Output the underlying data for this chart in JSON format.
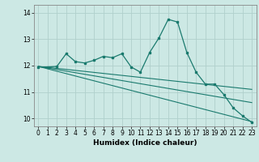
{
  "title": "",
  "xlabel": "Humidex (Indice chaleur)",
  "bg_color": "#cce8e4",
  "grid_color": "#b0d0cc",
  "line_color": "#1a7a6e",
  "xlim": [
    -0.5,
    23.5
  ],
  "ylim": [
    9.7,
    14.3
  ],
  "yticks": [
    10,
    11,
    12,
    13,
    14
  ],
  "xticks": [
    0,
    1,
    2,
    3,
    4,
    5,
    6,
    7,
    8,
    9,
    10,
    11,
    12,
    13,
    14,
    15,
    16,
    17,
    18,
    19,
    20,
    21,
    22,
    23
  ],
  "series1_x": [
    0,
    1,
    2,
    3,
    4,
    5,
    6,
    7,
    8,
    9,
    10,
    11,
    12,
    13,
    14,
    15,
    16,
    17,
    18,
    19,
    20,
    21,
    22,
    23
  ],
  "series1_y": [
    11.95,
    11.95,
    11.97,
    12.45,
    12.15,
    12.1,
    12.2,
    12.35,
    12.3,
    12.45,
    11.95,
    11.75,
    12.5,
    13.05,
    13.75,
    13.65,
    12.5,
    11.75,
    11.3,
    11.3,
    10.9,
    10.4,
    10.1,
    9.85
  ],
  "trend1_x": [
    0,
    23
  ],
  "trend1_y": [
    11.97,
    9.88
  ],
  "trend2_x": [
    0,
    23
  ],
  "trend2_y": [
    11.97,
    10.6
  ],
  "trend3_x": [
    0,
    23
  ],
  "trend3_y": [
    11.97,
    11.1
  ]
}
